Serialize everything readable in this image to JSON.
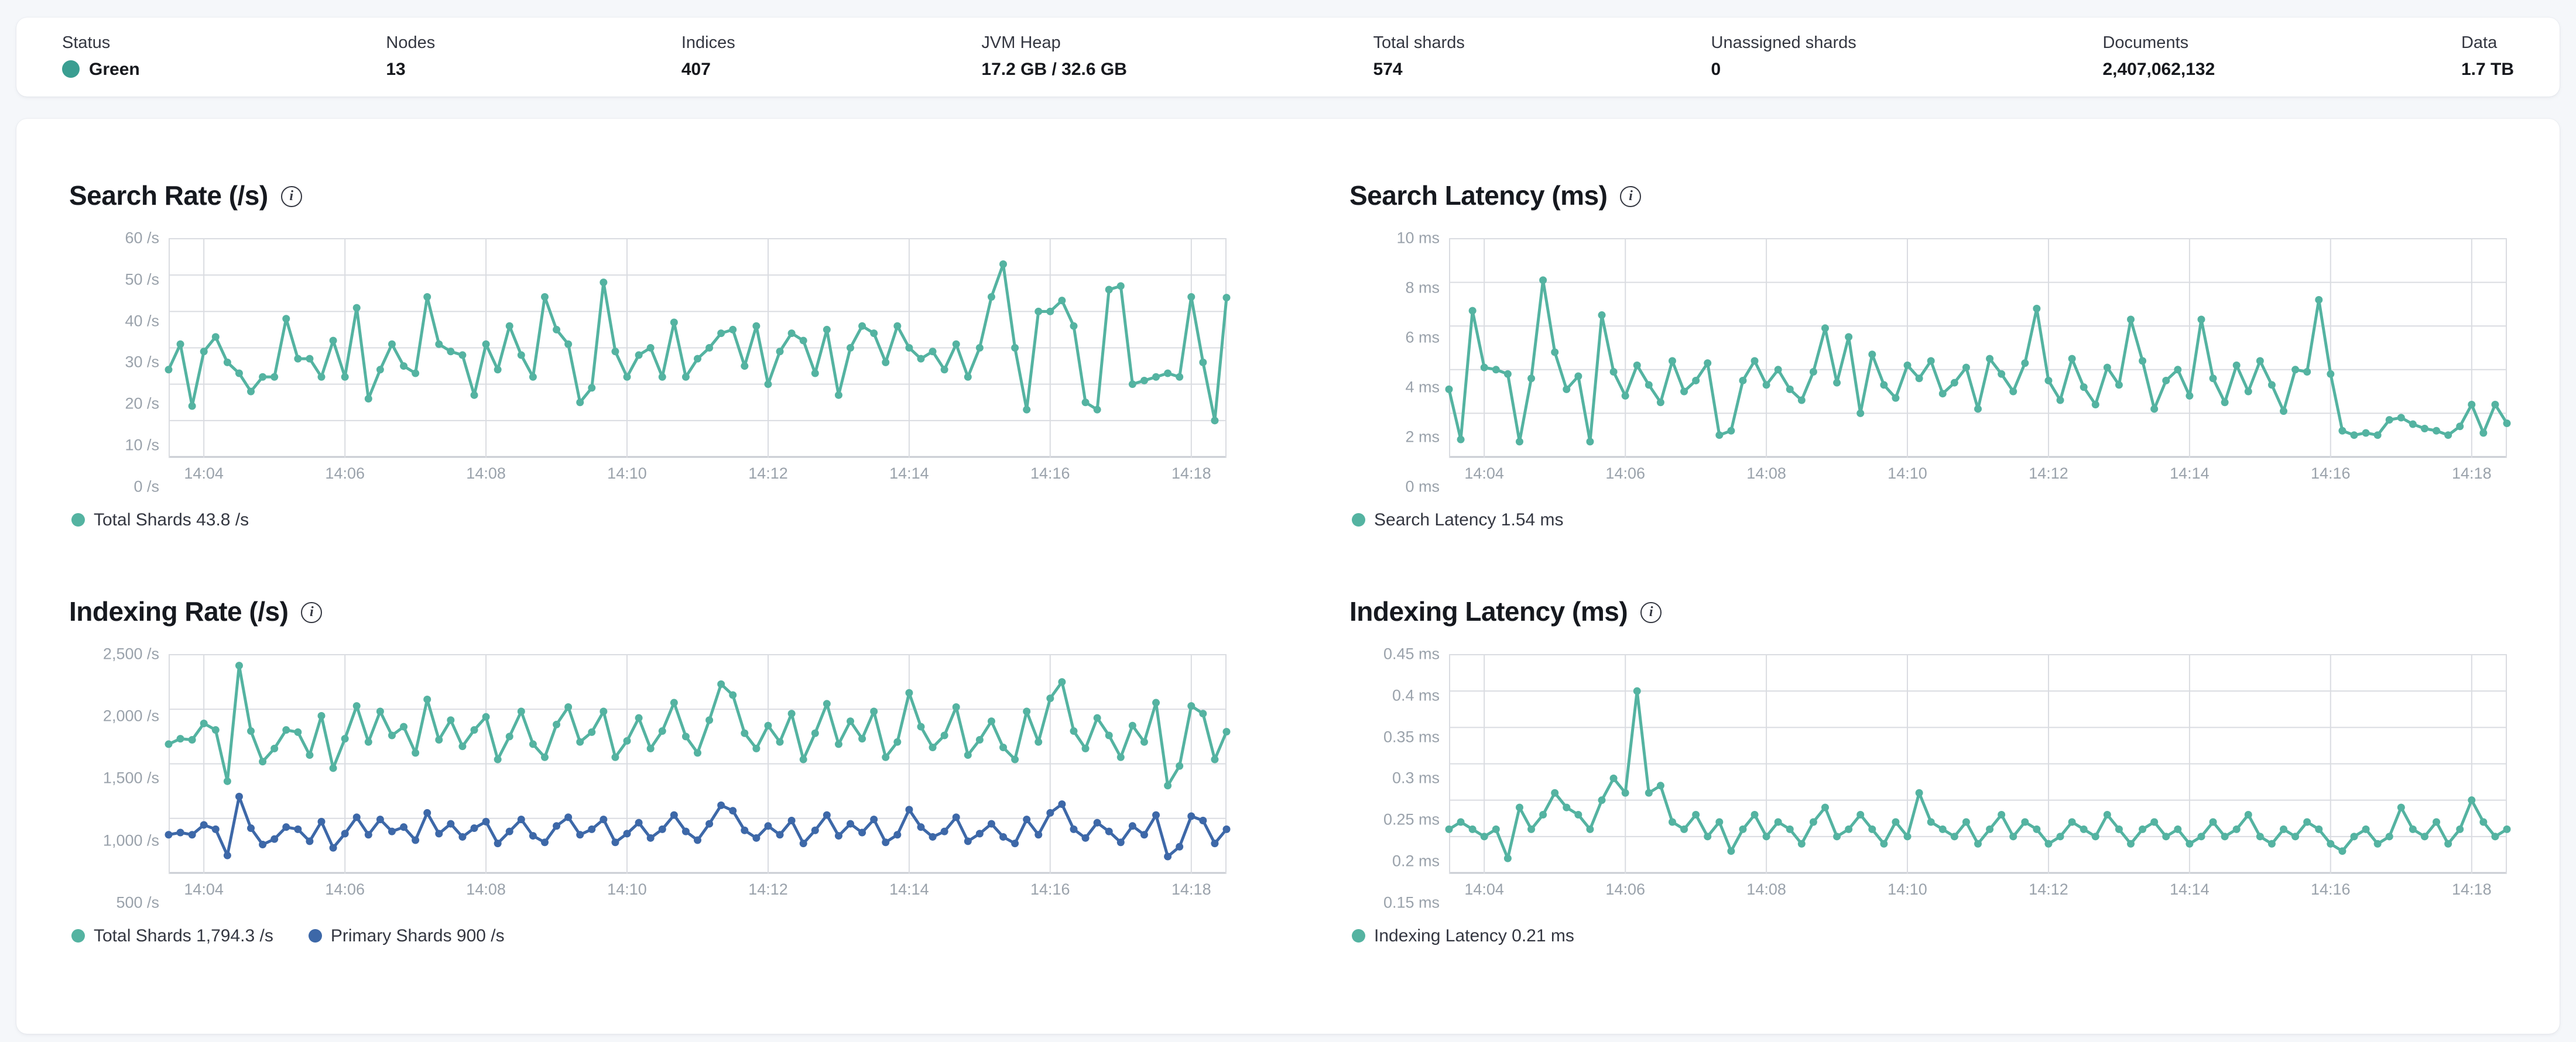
{
  "stats": {
    "status_color": "#3a9e91",
    "items": [
      {
        "label": "Status",
        "value": "Green"
      },
      {
        "label": "Nodes",
        "value": "13"
      },
      {
        "label": "Indices",
        "value": "407"
      },
      {
        "label": "JVM Heap",
        "value": "17.2 GB / 32.6 GB"
      },
      {
        "label": "Total shards",
        "value": "574"
      },
      {
        "label": "Unassigned shards",
        "value": "0"
      },
      {
        "label": "Documents",
        "value": "2,407,062,132"
      },
      {
        "label": "Data",
        "value": "1.7 TB"
      }
    ]
  },
  "colors": {
    "teal": "#54b3a1",
    "blue": "#3d68a8",
    "grid": "#dadce1",
    "axis": "#c9ccd3"
  },
  "x_axis": {
    "labels": [
      "14:04",
      "14:06",
      "14:08",
      "14:10",
      "14:12",
      "14:14",
      "14:16",
      "14:18"
    ],
    "fractions": [
      0.0333,
      0.1667,
      0.3,
      0.4333,
      0.5667,
      0.7,
      0.8333,
      0.9667
    ]
  },
  "chart_data": [
    {
      "type": "line",
      "title": "Search Rate (/s)",
      "y_min": 0,
      "y_max": 60,
      "y_ticks": [
        0,
        10,
        20,
        30,
        40,
        50,
        60
      ],
      "y_tick_labels": [
        "0 /s",
        "10 /s",
        "20 /s",
        "30 /s",
        "40 /s",
        "50 /s",
        "60 /s"
      ],
      "series": [
        {
          "name": "Total Shards",
          "legend": "Total Shards 43.8 /s",
          "color": "teal",
          "values": [
            24,
            31,
            14,
            29,
            33,
            26,
            23,
            18,
            22,
            22,
            38,
            27,
            27,
            22,
            32,
            22,
            41,
            16,
            24,
            31,
            25,
            23,
            44,
            31,
            29,
            28,
            17,
            31,
            24,
            36,
            28,
            22,
            44,
            35,
            31,
            15,
            19,
            48,
            29,
            22,
            28,
            30,
            22,
            37,
            22,
            27,
            30,
            34,
            35,
            25,
            36,
            20,
            29,
            34,
            32,
            23,
            35,
            17,
            30,
            36,
            34,
            26,
            36,
            30,
            27,
            29,
            24,
            31,
            22,
            30,
            44,
            53,
            30,
            13,
            40,
            40,
            43,
            36,
            15,
            13,
            46,
            47,
            20,
            21,
            22,
            23,
            22,
            44,
            26,
            10,
            43.8
          ]
        }
      ]
    },
    {
      "type": "line",
      "title": "Search Latency (ms)",
      "y_min": 0,
      "y_max": 10,
      "y_ticks": [
        0,
        2,
        4,
        6,
        8,
        10
      ],
      "y_tick_labels": [
        "0 ms",
        "2 ms",
        "4 ms",
        "6 ms",
        "8 ms",
        "10 ms"
      ],
      "series": [
        {
          "name": "Search Latency",
          "legend": "Search Latency 1.54 ms",
          "color": "teal",
          "values": [
            3.1,
            0.8,
            6.7,
            4.1,
            4.0,
            3.8,
            0.7,
            3.6,
            8.1,
            4.8,
            3.1,
            3.7,
            0.7,
            6.5,
            3.9,
            2.8,
            4.2,
            3.3,
            2.5,
            4.4,
            3.0,
            3.5,
            4.3,
            1.0,
            1.2,
            3.5,
            4.4,
            3.3,
            4.0,
            3.1,
            2.6,
            3.9,
            5.9,
            3.4,
            5.5,
            2.0,
            4.7,
            3.3,
            2.7,
            4.2,
            3.6,
            4.4,
            2.9,
            3.4,
            4.1,
            2.2,
            4.5,
            3.8,
            3.0,
            4.3,
            6.8,
            3.5,
            2.6,
            4.5,
            3.2,
            2.4,
            4.1,
            3.3,
            6.3,
            4.4,
            2.2,
            3.5,
            4.0,
            2.8,
            6.3,
            3.6,
            2.5,
            4.2,
            3.0,
            4.4,
            3.3,
            2.1,
            4.0,
            3.9,
            7.2,
            3.8,
            1.2,
            1.0,
            1.1,
            1.0,
            1.7,
            1.8,
            1.5,
            1.3,
            1.2,
            1.0,
            1.4,
            2.4,
            1.1,
            2.4,
            1.54
          ]
        }
      ]
    },
    {
      "type": "line",
      "title": "Indexing Rate (/s)",
      "y_min": 500,
      "y_max": 2500,
      "y_ticks": [
        500,
        1000,
        1500,
        2000,
        2500
      ],
      "y_tick_labels": [
        "500 /s",
        "1,000 /s",
        "1,500 /s",
        "2,000 /s",
        "2,500 /s"
      ],
      "series": [
        {
          "name": "Total Shards",
          "legend": "Total Shards 1,794.3 /s",
          "color": "teal",
          "values": [
            1680,
            1730,
            1720,
            1870,
            1810,
            1340,
            2400,
            1800,
            1520,
            1640,
            1810,
            1790,
            1580,
            1940,
            1460,
            1730,
            2030,
            1700,
            1980,
            1760,
            1840,
            1600,
            2090,
            1720,
            1900,
            1660,
            1810,
            1930,
            1540,
            1750,
            1980,
            1680,
            1560,
            1860,
            2020,
            1700,
            1790,
            1980,
            1560,
            1710,
            1920,
            1640,
            1800,
            2060,
            1750,
            1600,
            1900,
            2230,
            2130,
            1780,
            1640,
            1850,
            1700,
            1960,
            1540,
            1780,
            2050,
            1680,
            1890,
            1730,
            1980,
            1560,
            1700,
            2150,
            1840,
            1650,
            1760,
            2020,
            1580,
            1720,
            1890,
            1650,
            1540,
            1980,
            1700,
            2100,
            2250,
            1800,
            1640,
            1920,
            1760,
            1560,
            1850,
            1700,
            2060,
            1300,
            1480,
            2030,
            1960,
            1540,
            1794.3
          ]
        },
        {
          "name": "Primary Shards",
          "legend": "Primary Shards 900 /s",
          "color": "blue",
          "values": [
            850,
            870,
            850,
            940,
            900,
            660,
            1200,
            910,
            760,
            810,
            920,
            900,
            790,
            970,
            730,
            860,
            1010,
            850,
            990,
            880,
            920,
            800,
            1050,
            860,
            950,
            830,
            910,
            970,
            770,
            880,
            990,
            840,
            780,
            930,
            1010,
            850,
            900,
            990,
            780,
            860,
            960,
            820,
            900,
            1030,
            880,
            800,
            950,
            1120,
            1070,
            890,
            820,
            930,
            850,
            980,
            770,
            890,
            1030,
            840,
            950,
            870,
            990,
            780,
            850,
            1080,
            920,
            830,
            880,
            1010,
            790,
            860,
            950,
            830,
            770,
            990,
            850,
            1050,
            1130,
            900,
            820,
            960,
            880,
            780,
            930,
            850,
            1030,
            650,
            740,
            1020,
            980,
            770,
            900
          ]
        }
      ]
    },
    {
      "type": "line",
      "title": "Indexing Latency (ms)",
      "y_min": 0.15,
      "y_max": 0.45,
      "y_ticks": [
        0.15,
        0.2,
        0.25,
        0.3,
        0.35,
        0.4,
        0.45
      ],
      "y_tick_labels": [
        "0.15 ms",
        "0.2 ms",
        "0.25 ms",
        "0.3 ms",
        "0.35 ms",
        "0.4 ms",
        "0.45 ms"
      ],
      "series": [
        {
          "name": "Indexing Latency",
          "legend": "Indexing Latency 0.21 ms",
          "color": "teal",
          "values": [
            0.21,
            0.22,
            0.21,
            0.2,
            0.21,
            0.17,
            0.24,
            0.21,
            0.23,
            0.26,
            0.24,
            0.23,
            0.21,
            0.25,
            0.28,
            0.26,
            0.4,
            0.26,
            0.27,
            0.22,
            0.21,
            0.23,
            0.2,
            0.22,
            0.18,
            0.21,
            0.23,
            0.2,
            0.22,
            0.21,
            0.19,
            0.22,
            0.24,
            0.2,
            0.21,
            0.23,
            0.21,
            0.19,
            0.22,
            0.2,
            0.26,
            0.22,
            0.21,
            0.2,
            0.22,
            0.19,
            0.21,
            0.23,
            0.2,
            0.22,
            0.21,
            0.19,
            0.2,
            0.22,
            0.21,
            0.2,
            0.23,
            0.21,
            0.19,
            0.21,
            0.22,
            0.2,
            0.21,
            0.19,
            0.2,
            0.22,
            0.2,
            0.21,
            0.23,
            0.2,
            0.19,
            0.21,
            0.2,
            0.22,
            0.21,
            0.19,
            0.18,
            0.2,
            0.21,
            0.19,
            0.2,
            0.24,
            0.21,
            0.2,
            0.22,
            0.19,
            0.21,
            0.25,
            0.22,
            0.2,
            0.21
          ]
        }
      ]
    }
  ]
}
